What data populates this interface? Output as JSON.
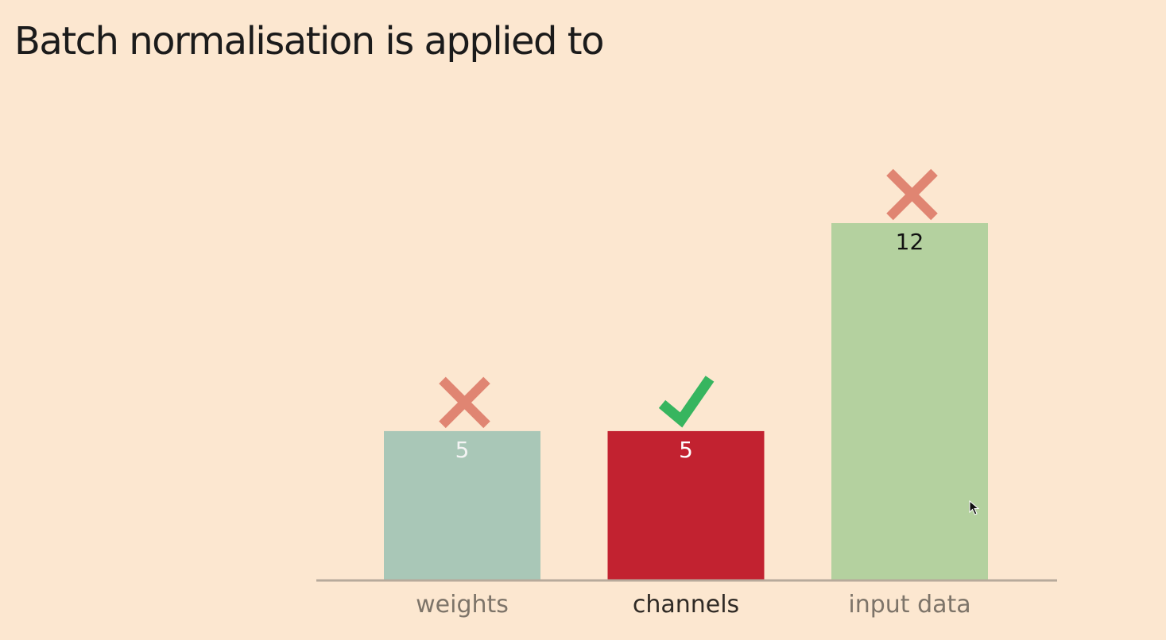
{
  "slide": {
    "title": "Batch normalisation is applied to"
  },
  "chart_data": {
    "type": "bar",
    "title": "",
    "xlabel": "",
    "ylabel": "",
    "ylim": [
      0,
      12
    ],
    "categories": [
      "weights",
      "channels",
      "input data"
    ],
    "values": [
      5,
      5,
      12
    ],
    "bar_colors": [
      "#a9c7b7",
      "#c22230",
      "#b4d19f"
    ],
    "value_label_colors": [
      "#f4f4f4",
      "#ffffff",
      "#111111"
    ],
    "category_label_colors": [
      "#7d7469",
      "#2f2a25",
      "#7d7469"
    ],
    "markers": [
      "cross-icon",
      "check-icon",
      "cross-icon"
    ],
    "marker_colors": {
      "cross-icon": "#e08572",
      "check-icon": "#37b55f"
    },
    "axis_color": "#b7aa9b"
  }
}
